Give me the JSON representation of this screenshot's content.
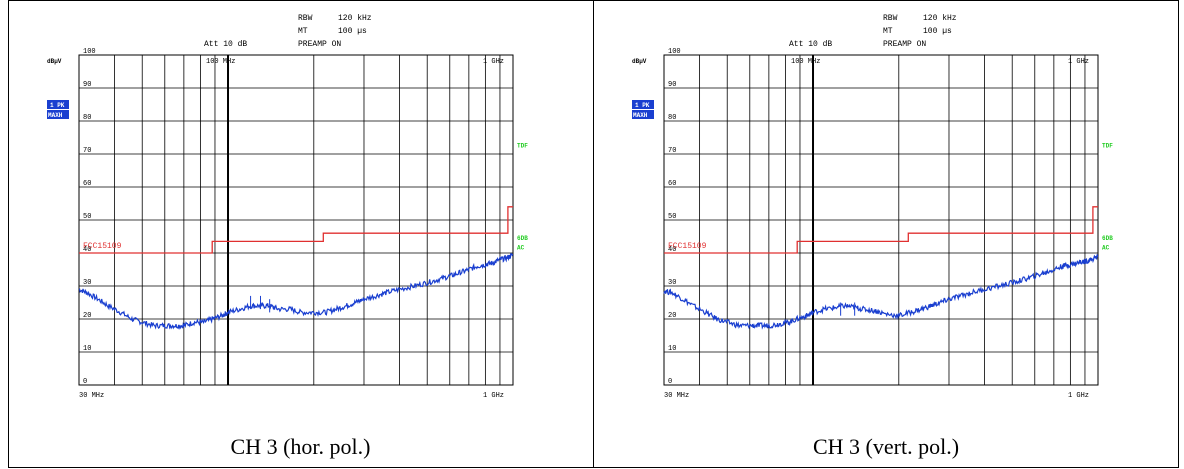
{
  "panels": [
    {
      "caption": "CH 3 (hor. pol.)",
      "header": {
        "rbw_label": "RBW",
        "rbw_value": "120 kHz",
        "mt_label": "MT",
        "mt_value": "100 µs",
        "att": "Att 10 dB",
        "preamp": "PREAMP ON"
      },
      "y_unit": "dBµV",
      "trace_badge_1": "1 PK",
      "trace_badge_2": "MAXH",
      "side_labels": {
        "tdf": "TDF",
        "sgl": "6DB",
        "ac": "AC"
      },
      "limit_label": "FCC15109",
      "top_freq_labels": {
        "mid": "100 MHz",
        "right": "1 GHz"
      },
      "bottom_freq_labels": {
        "left": "30 MHz",
        "right": "1 GHz"
      },
      "chart_data": {
        "type": "line",
        "x_scale": "log",
        "xlim_mhz": [
          30,
          1000
        ],
        "ylim": [
          0,
          100
        ],
        "ytick_labels": [
          "0",
          "10",
          "20",
          "30",
          "40",
          "50",
          "60",
          "70",
          "80",
          "90",
          "100"
        ],
        "limit_line": {
          "name": "FCC15109",
          "x_mhz": [
            30,
            88,
            88,
            216,
            216,
            960,
            960,
            1000
          ],
          "y": [
            40,
            40,
            43.5,
            43.5,
            46,
            46,
            54,
            54
          ]
        },
        "trace": {
          "x_mhz": [
            30,
            32,
            35,
            38,
            42,
            46,
            50,
            55,
            60,
            65,
            70,
            76,
            82,
            88,
            95,
            100,
            110,
            120,
            130,
            140,
            150,
            165,
            180,
            200,
            220,
            240,
            260,
            280,
            300,
            330,
            360,
            400,
            450,
            500,
            550,
            600,
            650,
            700,
            750,
            800,
            850,
            900,
            950,
            1000
          ],
          "y": [
            29,
            28,
            26,
            24,
            22,
            20,
            19,
            18,
            18,
            18,
            18,
            19,
            19,
            20,
            21,
            22,
            23,
            24,
            24,
            24,
            23,
            23,
            22,
            22,
            22,
            23,
            24,
            25,
            26,
            27,
            28,
            29,
            30,
            31,
            32,
            33,
            34,
            35,
            36,
            36.5,
            37,
            38,
            38.5,
            39.5
          ]
        },
        "peaks": [
          {
            "x_mhz": 120,
            "y": 27
          },
          {
            "x_mhz": 130,
            "y": 27
          },
          {
            "x_mhz": 140,
            "y": 26
          }
        ]
      }
    },
    {
      "caption": "CH 3 (vert. pol.)",
      "header": {
        "rbw_label": "RBW",
        "rbw_value": "120 kHz",
        "mt_label": "MT",
        "mt_value": "100 µs",
        "att": "Att 10 dB",
        "preamp": "PREAMP ON"
      },
      "y_unit": "dBµV",
      "trace_badge_1": "1 PK",
      "trace_badge_2": "MAXH",
      "side_labels": {
        "tdf": "TDF",
        "sgl": "6DB",
        "ac": "AC"
      },
      "limit_label": "FCC15109",
      "top_freq_labels": {
        "mid": "100 MHz",
        "right": "1 GHz"
      },
      "bottom_freq_labels": {
        "left": "30 MHz",
        "right": "1 GHz"
      },
      "chart_data": {
        "type": "line",
        "x_scale": "log",
        "xlim_mhz": [
          30,
          1000
        ],
        "ylim": [
          0,
          100
        ],
        "ytick_labels": [
          "0",
          "10",
          "20",
          "30",
          "40",
          "50",
          "60",
          "70",
          "80",
          "90",
          "100"
        ],
        "limit_line": {
          "name": "FCC15109",
          "x_mhz": [
            30,
            88,
            88,
            216,
            216,
            960,
            960,
            1000
          ],
          "y": [
            40,
            40,
            43.5,
            43.5,
            46,
            46,
            54,
            54
          ]
        },
        "trace": {
          "x_mhz": [
            30,
            32,
            35,
            38,
            42,
            46,
            50,
            55,
            60,
            65,
            70,
            76,
            82,
            88,
            95,
            100,
            110,
            120,
            130,
            140,
            150,
            165,
            180,
            200,
            220,
            240,
            260,
            280,
            300,
            330,
            360,
            400,
            450,
            500,
            550,
            600,
            650,
            700,
            750,
            800,
            850,
            900,
            950,
            1000
          ],
          "y": [
            28.5,
            28,
            26,
            24,
            22,
            20,
            19,
            18,
            18,
            18,
            18,
            18.5,
            19,
            20,
            21,
            22,
            23,
            23.5,
            24,
            23.5,
            23,
            22.5,
            21.5,
            21,
            22,
            23,
            24,
            25,
            26,
            27,
            28,
            29,
            30,
            31,
            32,
            33,
            34,
            35,
            36,
            36.5,
            37,
            37.5,
            38,
            39
          ]
        },
        "peaks": [
          {
            "x_mhz": 125,
            "y": 25
          },
          {
            "x_mhz": 140,
            "y": 25
          }
        ]
      }
    }
  ]
}
